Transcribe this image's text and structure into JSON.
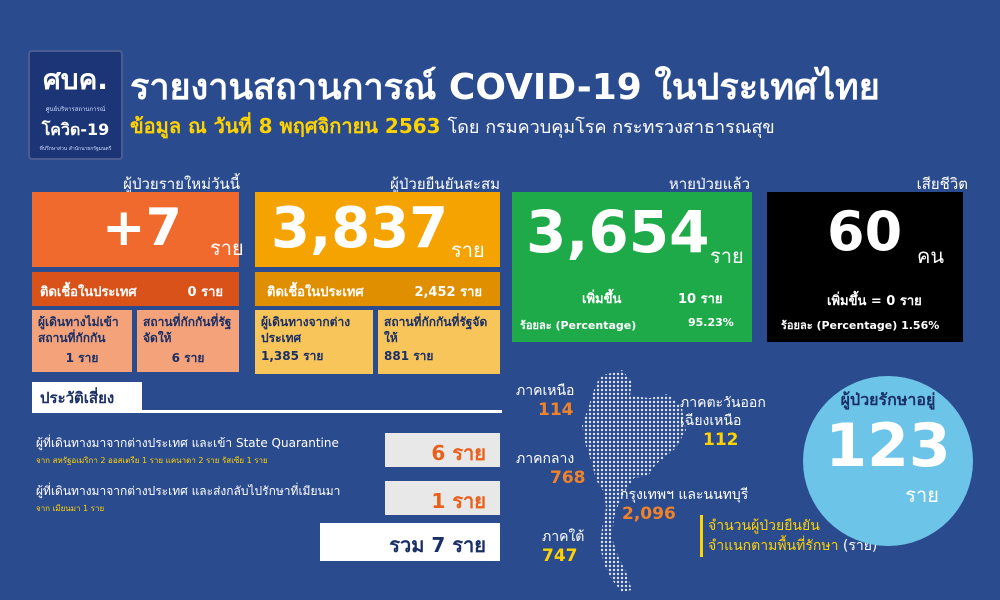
{
  "logo": {
    "line1": "ศบค.",
    "line2": "ศูนย์บริหารสถานการณ์",
    "line3": "โควิด-19",
    "line4": "ที่ปรึกษาส่วน สำนักนายกรัฐมนตรี"
  },
  "header": {
    "title": "รายงานสถานการณ์ COVID-19 ในประเทศไทย",
    "subtitle": "ข้อมูล ณ วันที่ 8 พฤศจิกายน 2563",
    "source": "โดย กรมควบคุมโรค กระทรวงสาธารณสุข"
  },
  "new_cases": {
    "caption": "ผู้ป่วยรายใหม่วันนี้",
    "value": "+7",
    "unit": "ราย",
    "local_label": "ติดเชื้อในประเทศ",
    "local_value": "0 ราย",
    "sub1_label": "ผู้เดินทางไม่เข้าสถานที่กักกัน",
    "sub1_value": "1 ราย",
    "sub2_label": "สถานที่กักกันที่รัฐจัดให้",
    "sub2_value": "6 ราย"
  },
  "cumulative": {
    "caption": "ผู้ป่วยยืนยันสะสม",
    "value": "3,837",
    "unit": "ราย",
    "local_label": "ติดเชื้อในประเทศ",
    "local_value": "2,452 ราย",
    "sub1_label": "ผู้เดินทางจากต่างประเทศ",
    "sub1_value": "1,385 ราย",
    "sub2_label": "สถานที่กักกันที่รัฐจัดให้",
    "sub2_value": "881 ราย"
  },
  "recovered": {
    "caption": "หายป่วยแล้ว",
    "value": "3,654",
    "unit": "ราย",
    "increase_label": "เพิ่มขึ้น",
    "increase_value": "10 ราย",
    "pct_label": "ร้อยละ (Percentage)",
    "pct_value": "95.23%"
  },
  "deaths": {
    "caption": "เสียชีวิต",
    "value": "60",
    "unit": "คน",
    "increase_text": "เพิ่มขึ้น = 0 ราย",
    "pct_text": "ร้อยละ (Percentage) 1.56%"
  },
  "risk": {
    "tab": "ประวัติเสี่ยง",
    "row1_text": "ผู้ที่เดินทางมาจากต่างประเทศ และเข้า State Quarantine",
    "row1_note": "จาก สหรัฐอเมริกา 2 ออสเตรีย 1 ราย แคนาดา 2 ราย รัสเซีย 1 ราย",
    "row1_value": "6 ราย",
    "row2_text": "ผู้ที่เดินทางมาจากต่างประเทศ และส่งกลับไปรักษาที่เมียนมา",
    "row2_note": "จาก เมียนมา 1 ราย",
    "row2_value": "1 ราย",
    "total": "รวม 7 ราย"
  },
  "regions": {
    "north_label": "ภาคเหนือ",
    "north_value": "114",
    "central_label": "ภาคกลาง",
    "central_value": "768",
    "south_label": "ภาคใต้",
    "south_value": "747",
    "northeast_label": "ภาคตะวันออกเฉียงเหนือ",
    "northeast_value": "112",
    "bangkok_label": "กรุงเทพฯ และนนทบุรี",
    "bangkok_value": "2,096",
    "legend_line1": "จำนวนผู้ป่วยยืนยัน",
    "legend_line2": "จำแนกตามพื้นที่รักษา",
    "legend_unit": "(ราย)"
  },
  "treating": {
    "caption": "ผู้ป่วยรักษาอยู่",
    "value": "123",
    "unit": "ราย"
  },
  "colors": {
    "background": "#2b4b8f",
    "new_cases": "#ef6a2c",
    "new_cases_strip": "#d8521a",
    "new_cases_sub": "#f4a27a",
    "cumulative": "#f5a300",
    "cumulative_strip": "#e08f00",
    "cumulative_sub": "#f8c55a",
    "recovered": "#1faa4a",
    "deaths": "#000000",
    "circle": "#6cc4e8",
    "accent_yellow": "#ffd200"
  }
}
